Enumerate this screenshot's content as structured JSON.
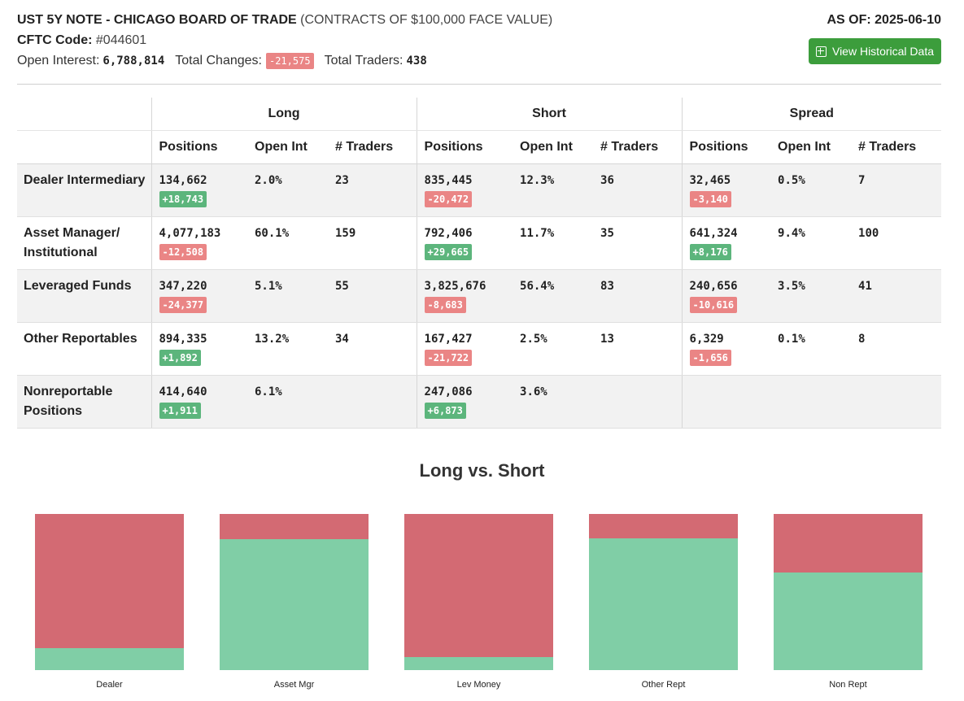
{
  "header": {
    "title": "UST 5Y NOTE - CHICAGO BOARD OF TRADE",
    "subtitle": "(CONTRACTS OF $100,000 FACE VALUE)",
    "cftc_label": "CFTC Code:",
    "cftc_code": "#044601",
    "open_interest_label": "Open Interest:",
    "open_interest": "6,788,814",
    "total_changes_label": "Total Changes:",
    "total_changes": "-21,575",
    "total_traders_label": "Total Traders:",
    "total_traders": "438",
    "as_of": "AS OF: 2025-06-10",
    "history_button": "View Historical Data"
  },
  "table": {
    "groups": [
      "Long",
      "Short",
      "Spread"
    ],
    "columns": [
      "Positions",
      "Open Int",
      "# Traders"
    ],
    "rows": [
      {
        "category": "Dealer Intermediary",
        "long": {
          "positions": "134,662",
          "change": "+18,743",
          "open_int": "2.0%",
          "traders": "23"
        },
        "short": {
          "positions": "835,445",
          "change": "-20,472",
          "open_int": "12.3%",
          "traders": "36"
        },
        "spread": {
          "positions": "32,465",
          "change": "-3,140",
          "open_int": "0.5%",
          "traders": "7"
        }
      },
      {
        "category": "Asset Manager/ Institutional",
        "long": {
          "positions": "4,077,183",
          "change": "-12,508",
          "open_int": "60.1%",
          "traders": "159"
        },
        "short": {
          "positions": "792,406",
          "change": "+29,665",
          "open_int": "11.7%",
          "traders": "35"
        },
        "spread": {
          "positions": "641,324",
          "change": "+8,176",
          "open_int": "9.4%",
          "traders": "100"
        }
      },
      {
        "category": "Leveraged Funds",
        "long": {
          "positions": "347,220",
          "change": "-24,377",
          "open_int": "5.1%",
          "traders": "55"
        },
        "short": {
          "positions": "3,825,676",
          "change": "-8,683",
          "open_int": "56.4%",
          "traders": "83"
        },
        "spread": {
          "positions": "240,656",
          "change": "-10,616",
          "open_int": "3.5%",
          "traders": "41"
        }
      },
      {
        "category": "Other Reportables",
        "long": {
          "positions": "894,335",
          "change": "+1,892",
          "open_int": "13.2%",
          "traders": "34"
        },
        "short": {
          "positions": "167,427",
          "change": "-21,722",
          "open_int": "2.5%",
          "traders": "13"
        },
        "spread": {
          "positions": "6,329",
          "change": "-1,656",
          "open_int": "0.1%",
          "traders": "8"
        }
      },
      {
        "category": "Nonreportable Positions",
        "long": {
          "positions": "414,640",
          "change": "+1,911",
          "open_int": "6.1%",
          "traders": ""
        },
        "short": {
          "positions": "247,086",
          "change": "+6,873",
          "open_int": "3.6%",
          "traders": ""
        },
        "spread": {
          "positions": "",
          "change": "",
          "open_int": "",
          "traders": ""
        }
      }
    ]
  },
  "chart_data": {
    "type": "bar",
    "title": "Long vs. Short",
    "categories": [
      "Dealer",
      "Asset Mgr",
      "Lev Money",
      "Other Rept",
      "Non Rept"
    ],
    "series": [
      {
        "values": [
          134662,
          4077183,
          347220,
          894335,
          414640
        ]
      },
      {
        "values": [
          835445,
          792406,
          3825676,
          167427,
          247086
        ]
      }
    ],
    "colors": {
      "long": "#80cea6",
      "short": "#d36a73"
    },
    "stacked_percent": true
  },
  "colors": {
    "button": "#3c9d3c",
    "negative_badge": "#ea8585",
    "positive_badge": "#5cb57c"
  }
}
